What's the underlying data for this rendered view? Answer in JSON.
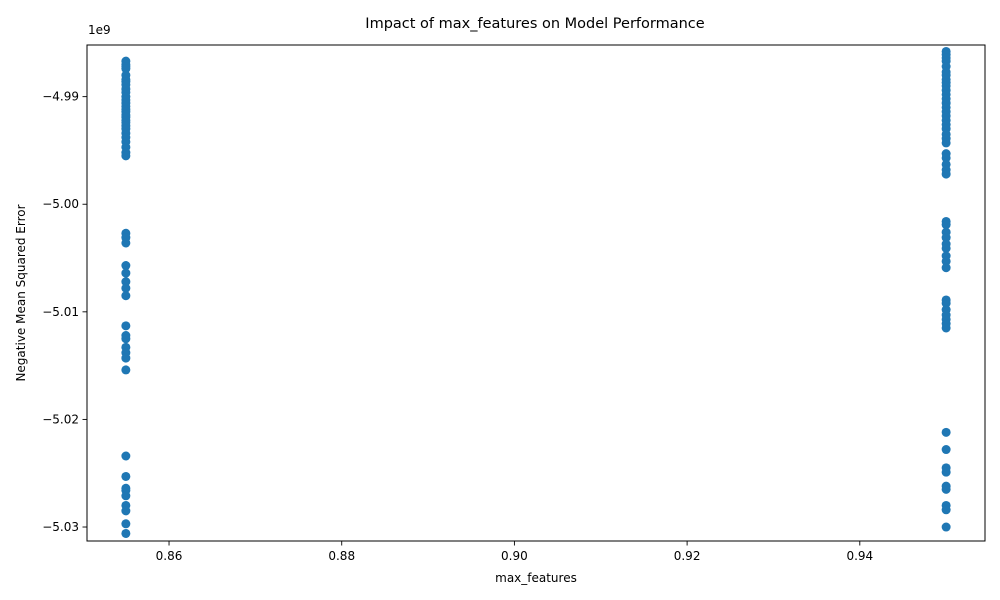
{
  "chart_data": {
    "type": "scatter",
    "title": "Impact of max_features on Model Performance",
    "xlabel": "max_features",
    "ylabel": "Negative Mean Squared Error",
    "y_offset_label": "1e9",
    "xlim": [
      0.8505,
      0.9545
    ],
    "ylim": [
      -5.0313,
      -4.9852
    ],
    "xticks": [
      0.86,
      0.88,
      0.9,
      0.92,
      0.94
    ],
    "xtick_labels": [
      "0.86",
      "0.88",
      "0.90",
      "0.92",
      "0.94"
    ],
    "yticks": [
      -4.99,
      -5.0,
      -5.01,
      -5.02,
      -5.03
    ],
    "ytick_labels": [
      "−4.99",
      "−5.00",
      "−5.01",
      "−5.02",
      "−5.03"
    ],
    "grid": false,
    "marker_color": "#1f77b4",
    "series": [
      {
        "x": 0.855,
        "y": [
          -4.9867,
          -4.987,
          -4.9872,
          -4.9874,
          -4.988,
          -4.9884,
          -4.9886,
          -4.9889,
          -4.9893,
          -4.9896,
          -4.99,
          -4.9903,
          -4.9906,
          -4.9909,
          -4.9912,
          -4.9914,
          -4.9917,
          -4.9919,
          -4.9922,
          -4.9924,
          -4.9927,
          -4.993,
          -4.9934,
          -4.9938,
          -4.9942,
          -4.9947,
          -4.9952,
          -4.9955,
          -5.0027,
          -5.0031,
          -5.0036,
          -5.0057,
          -5.0064,
          -5.0072,
          -5.0078,
          -5.0085,
          -5.0113,
          -5.0122,
          -5.0125,
          -5.0133,
          -5.0138,
          -5.0143,
          -5.0154,
          -5.0234,
          -5.0253,
          -5.0264,
          -5.0266,
          -5.0271,
          -5.028,
          -5.0285,
          -5.0297,
          -5.0306
        ]
      },
      {
        "x": 0.95,
        "y": [
          -4.9858,
          -4.9861,
          -4.9864,
          -4.9867,
          -4.9872,
          -4.9877,
          -4.988,
          -4.9884,
          -4.9887,
          -4.989,
          -4.9894,
          -4.9898,
          -4.9902,
          -4.9906,
          -4.991,
          -4.9914,
          -4.9918,
          -4.9922,
          -4.9926,
          -4.993,
          -4.9935,
          -4.9939,
          -4.9943,
          -4.9953,
          -4.9957,
          -4.9963,
          -4.9968,
          -4.9972,
          -5.0016,
          -5.0019,
          -5.0026,
          -5.0031,
          -5.0037,
          -5.0041,
          -5.0048,
          -5.0053,
          -5.0059,
          -5.0089,
          -5.0092,
          -5.0098,
          -5.0103,
          -5.0107,
          -5.0111,
          -5.0115,
          -5.0212,
          -5.0228,
          -5.0245,
          -5.0249,
          -5.0262,
          -5.0265,
          -5.028,
          -5.0284,
          -5.03
        ]
      }
    ]
  }
}
